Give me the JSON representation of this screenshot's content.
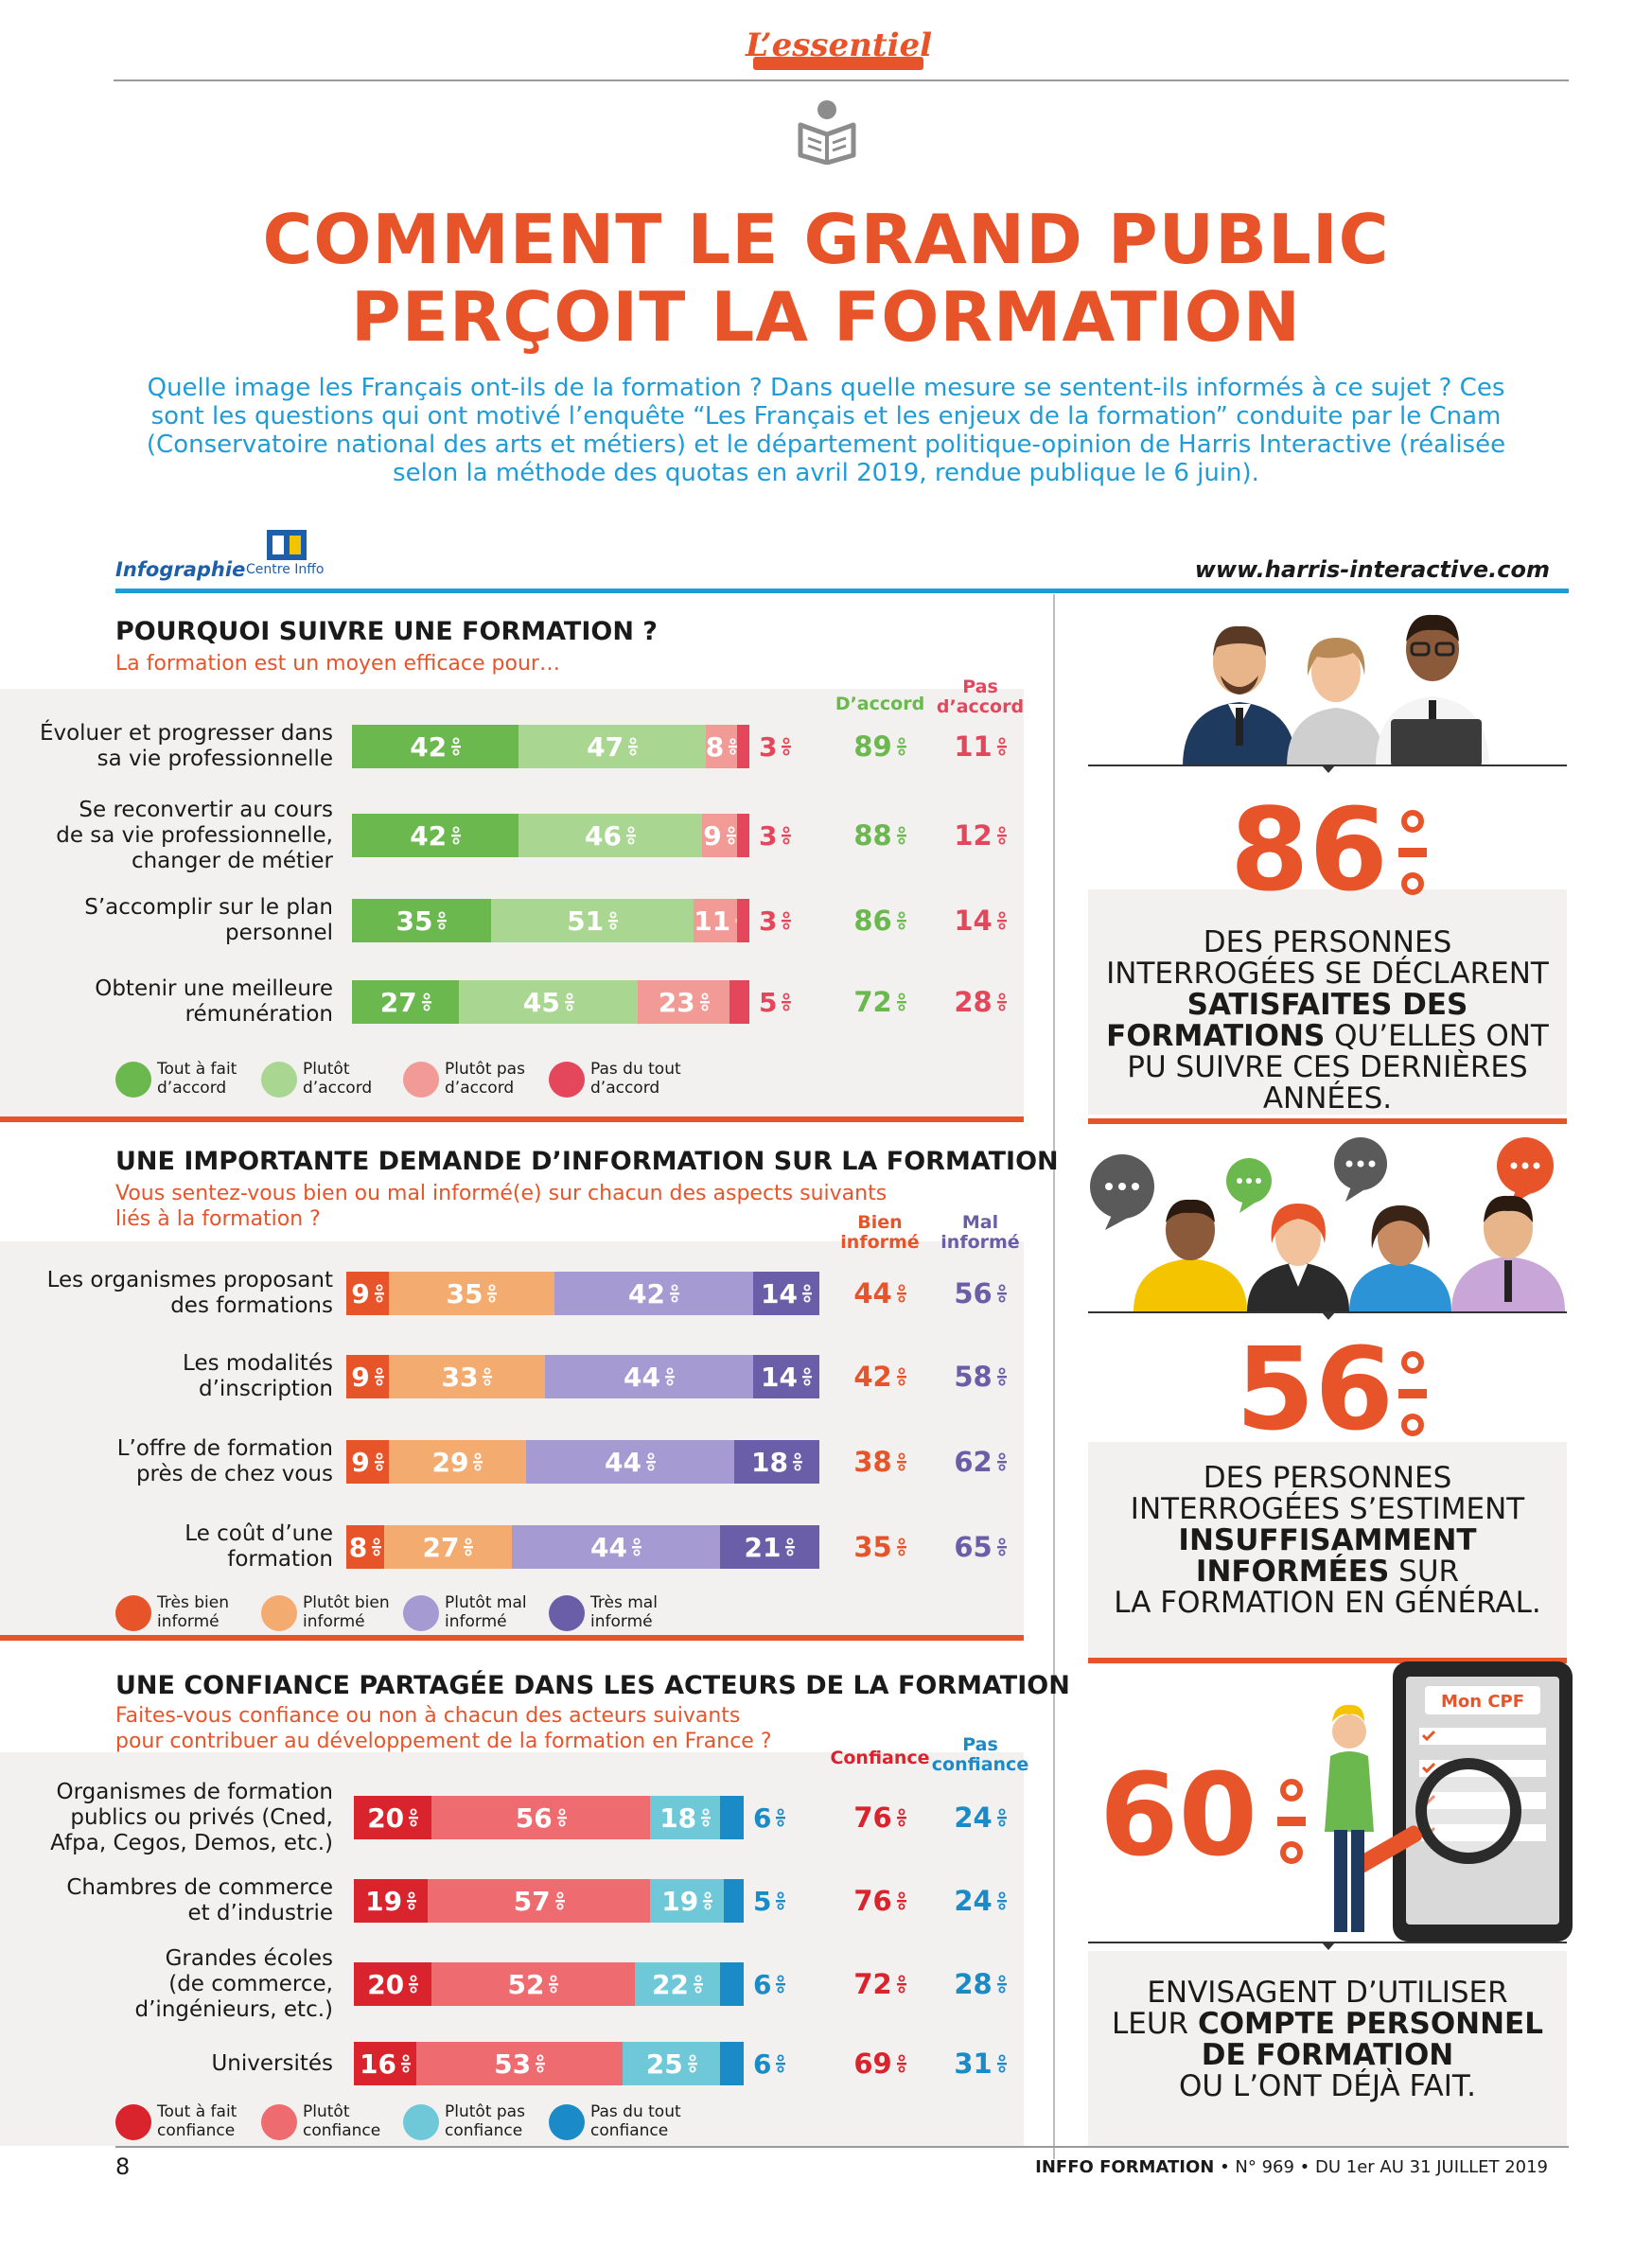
{
  "header": {
    "kicker": "L’essentiel",
    "title_line1": "COMMENT LE GRAND PUBLIC",
    "title_line2": "PERÇOIT LA FORMATION",
    "intro": "Quelle image les Français ont-ils de la formation ? Dans quelle mesure se sentent-ils informés à ce sujet ? Ces sont les questions qui ont motivé l’enquête “Les Français et les enjeux de la formation” conduite par le Cnam (Conservatoire national des arts et métiers) et le département politique-opinion de Harris Interactive (réalisée selon la méthode des quotas en avril 2019, rendue publique le 6 juin).",
    "credit": "Infographie",
    "logo_text": "Centre Inffo",
    "url": "www.harris-interactive.com"
  },
  "colors": {
    "orange": "#e8542a",
    "green_dark": "#6ab84e",
    "green_light": "#a9d690",
    "pink_light": "#f29a95",
    "red": "#e4475b",
    "info_very_good": "#e8542a",
    "info_good": "#f4ab6f",
    "info_bad": "#a59ad1",
    "info_very_bad": "#6a5ea8",
    "trust_total": "#d9232d",
    "trust_rather": "#ee6b70",
    "trust_rather_not": "#6fc8d8",
    "trust_not": "#1a8bc7",
    "blue": "#1e9cd7"
  },
  "chart_data": [
    {
      "type": "bar",
      "stacked": true,
      "orientation": "horizontal",
      "title": "POURQUOI SUIVRE UNE FORMATION ?",
      "subtitle": "La formation est un moyen efficace pour…",
      "categories": [
        "Évoluer et progresser dans sa vie professionnelle",
        "Se reconvertir au cours de sa vie professionnelle, changer de métier",
        "S’accomplir sur le plan personnel",
        "Obtenir une meilleure rémunération"
      ],
      "series": [
        {
          "name": "Tout à fait d’accord",
          "values": [
            42,
            42,
            35,
            27
          ]
        },
        {
          "name": "Plutôt d’accord",
          "values": [
            47,
            46,
            51,
            45
          ]
        },
        {
          "name": "Plutôt pas d’accord",
          "values": [
            8,
            9,
            11,
            23
          ]
        },
        {
          "name": "Pas du tout d’accord",
          "values": [
            3,
            3,
            3,
            5
          ]
        }
      ],
      "totals": [
        {
          "name": "D’accord",
          "values": [
            89,
            88,
            86,
            72
          ]
        },
        {
          "name": "Pas d’accord",
          "values": [
            11,
            12,
            14,
            28
          ]
        }
      ],
      "unit": "%",
      "xlim": [
        0,
        100
      ],
      "legend": "bottom"
    },
    {
      "type": "bar",
      "stacked": true,
      "orientation": "horizontal",
      "title": "UNE IMPORTANTE DEMANDE D’INFORMATION SUR LA FORMATION",
      "subtitle": "Vous sentez-vous bien ou mal informé(e) sur chacun des aspects suivants liés à la formation ?",
      "categories": [
        "Les organismes proposant des formations",
        "Les modalités d’inscription",
        "L’offre de formation près de chez vous",
        "Le coût d’une formation"
      ],
      "series": [
        {
          "name": "Très bien informé",
          "values": [
            9,
            9,
            9,
            8
          ]
        },
        {
          "name": "Plutôt bien informé",
          "values": [
            35,
            33,
            29,
            27
          ]
        },
        {
          "name": "Plutôt mal informé",
          "values": [
            42,
            44,
            44,
            44
          ]
        },
        {
          "name": "Très mal informé",
          "values": [
            14,
            14,
            18,
            21
          ]
        }
      ],
      "totals": [
        {
          "name": "Bien informé",
          "values": [
            44,
            42,
            38,
            35
          ]
        },
        {
          "name": "Mal informé",
          "values": [
            56,
            58,
            62,
            65
          ]
        }
      ],
      "unit": "%",
      "xlim": [
        0,
        100
      ],
      "legend": "bottom"
    },
    {
      "type": "bar",
      "stacked": true,
      "orientation": "horizontal",
      "title": "UNE CONFIANCE PARTAGÉE DANS LES ACTEURS DE LA FORMATION",
      "subtitle": "Faites-vous confiance ou non à chacun des acteurs suivants pour contribuer au développement de la formation en France ?",
      "categories": [
        "Organismes de formation publics ou privés (Cned, Afpa, Cegos, Demos, etc.)",
        "Chambres de commerce et d’industrie",
        "Grandes écoles (de commerce, d’ingénieurs, etc.)",
        "Universités"
      ],
      "series": [
        {
          "name": "Tout à fait confiance",
          "values": [
            20,
            19,
            20,
            16
          ]
        },
        {
          "name": "Plutôt confiance",
          "values": [
            56,
            57,
            52,
            53
          ]
        },
        {
          "name": "Plutôt pas confiance",
          "values": [
            18,
            19,
            22,
            25
          ]
        },
        {
          "name": "Pas du tout confiance",
          "values": [
            6,
            5,
            6,
            6
          ]
        }
      ],
      "totals": [
        {
          "name": "Confiance",
          "values": [
            76,
            76,
            72,
            69
          ]
        },
        {
          "name": "Pas confiance",
          "values": [
            24,
            24,
            28,
            31
          ]
        }
      ],
      "unit": "%",
      "xlim": [
        0,
        100
      ],
      "legend": "bottom"
    }
  ],
  "sections": [
    {
      "title": "POURQUOI SUIVRE UNE FORMATION ?",
      "subtitle": "La formation est un moyen efficace pour…",
      "col1": "D’accord",
      "col2a": "Pas",
      "col2b": "d’accord",
      "labels": [
        [
          "Évoluer et progresser dans",
          "sa vie professionnelle"
        ],
        [
          "Se reconvertir au cours",
          "de sa vie professionnelle,",
          "changer de métier"
        ],
        [
          "S’accomplir sur le plan",
          "personnel"
        ],
        [
          "Obtenir une meilleure",
          "rémunération"
        ]
      ],
      "legend": [
        [
          "Tout à fait",
          "d’accord"
        ],
        [
          "Plutôt",
          "d’accord"
        ],
        [
          "Plutôt pas",
          "d’accord"
        ],
        [
          "Pas du tout",
          "d’accord"
        ]
      ]
    },
    {
      "title": "UNE IMPORTANTE DEMANDE D’INFORMATION SUR LA FORMATION",
      "subtitle_line1": "Vous sentez-vous bien ou mal informé(e) sur chacun des aspects suivants",
      "subtitle_line2": "liés à la formation ?",
      "col1a": "Bien",
      "col1b": "informé",
      "col2a": "Mal",
      "col2b": "informé",
      "labels": [
        [
          "Les organismes proposant",
          "des formations"
        ],
        [
          "Les modalités",
          "d’inscription"
        ],
        [
          "L’offre de formation",
          "près de chez vous"
        ],
        [
          "Le coût d’une",
          "formation"
        ]
      ],
      "legend": [
        [
          "Très bien",
          "informé"
        ],
        [
          "Plutôt bien",
          "informé"
        ],
        [
          "Plutôt mal",
          "informé"
        ],
        [
          "Très mal",
          "informé"
        ]
      ]
    },
    {
      "title": "UNE CONFIANCE PARTAGÉE DANS LES ACTEURS DE LA FORMATION",
      "subtitle_line1": "Faites-vous confiance ou non à chacun des acteurs suivants",
      "subtitle_line2": "pour contribuer au développement de la formation en France ?",
      "col1": "Confiance",
      "col2a": "Pas",
      "col2b": "confiance",
      "labels": [
        [
          "Organismes de formation",
          "publics ou privés (Cned,",
          "Afpa, Cegos, Demos, etc.)"
        ],
        [
          "Chambres de commerce",
          "et d’industrie"
        ],
        [
          "Grandes écoles",
          "(de commerce,",
          "d’ingénieurs, etc.)"
        ],
        [
          "Universités"
        ]
      ],
      "legend": [
        [
          "Tout à fait",
          "confiance"
        ],
        [
          "Plutôt",
          "confiance"
        ],
        [
          "Plutôt pas",
          "confiance"
        ],
        [
          "Pas du tout",
          "confiance"
        ]
      ]
    }
  ],
  "stats": [
    {
      "number": "86",
      "lines": [
        "DES PERSONNES",
        "INTERROGÉES SE DÉCLARENT"
      ],
      "bold1": "SATISFAITES DES",
      "mixed_bold": "FORMATIONS",
      "mixed_rest": " QU’ELLES ONT",
      "tail": [
        "PU SUIVRE CES DERNIÈRES",
        "ANNÉES."
      ]
    },
    {
      "number": "56",
      "lines": [
        "DES PERSONNES",
        "INTERROGÉES S’ESTIMENT"
      ],
      "bold1": "INSUFFISAMMENT",
      "mixed_bold": "INFORMÉES",
      "mixed_rest": " SUR",
      "tail": [
        "LA FORMATION EN GÉNÉRAL."
      ]
    },
    {
      "number": "60",
      "line1": "ENVISAGENT D’UTILISER",
      "mixed_rest_pre": "LEUR ",
      "mixed_bold": "COMPTE PERSONNEL",
      "bold1": "DE FORMATION",
      "tail": [
        "OU L’ONT DÉJÀ FAIT."
      ],
      "phone_label": "Mon CPF"
    }
  ],
  "footer": {
    "page": "8",
    "brand": "INFFO FORMATION",
    "issue": " • N° 969 • DU 1er AU 31 JUILLET 2019"
  }
}
